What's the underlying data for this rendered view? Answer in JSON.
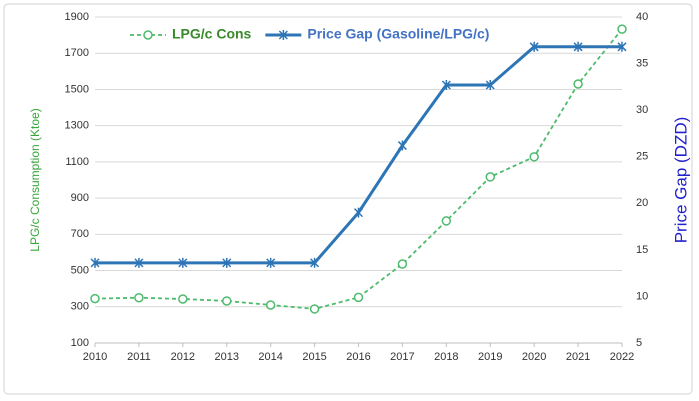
{
  "chart_data": {
    "type": "line",
    "x": [
      2010,
      2011,
      2012,
      2013,
      2014,
      2015,
      2016,
      2017,
      2018,
      2019,
      2020,
      2021,
      2022
    ],
    "xlim": [
      2010,
      2022
    ],
    "xticks": [
      2010,
      2011,
      2012,
      2013,
      2014,
      2015,
      2016,
      2017,
      2018,
      2019,
      2020,
      2021,
      2022
    ],
    "series": [
      {
        "name": "LPG/c Cons",
        "color": "#4cbb6c",
        "legend_color": "#3a8a2a",
        "values": [
          345,
          350,
          343,
          332,
          310,
          288,
          352,
          536,
          774,
          1017,
          1128,
          1530,
          1833
        ]
      },
      {
        "name": "Price Gap (Gasoline/LPG/c)",
        "color": "#2e75b6",
        "legend_color": "#4472c4",
        "axis": "y2",
        "values": [
          13.6,
          13.6,
          13.6,
          13.6,
          13.6,
          13.6,
          19,
          26.2,
          32.7,
          32.7,
          36.8,
          36.8,
          36.8
        ]
      }
    ],
    "ylabel": "LPG/c Consumption (Ktoe)",
    "y2label": "Price Gap (DZD)",
    "ylim": [
      100,
      1900
    ],
    "yticks": [
      100,
      300,
      500,
      700,
      900,
      1100,
      1300,
      1500,
      1700,
      1900
    ],
    "y2lim": [
      5,
      40
    ],
    "y2ticks": [
      5,
      10,
      15,
      20,
      25,
      30,
      35,
      40
    ],
    "grid": true
  }
}
